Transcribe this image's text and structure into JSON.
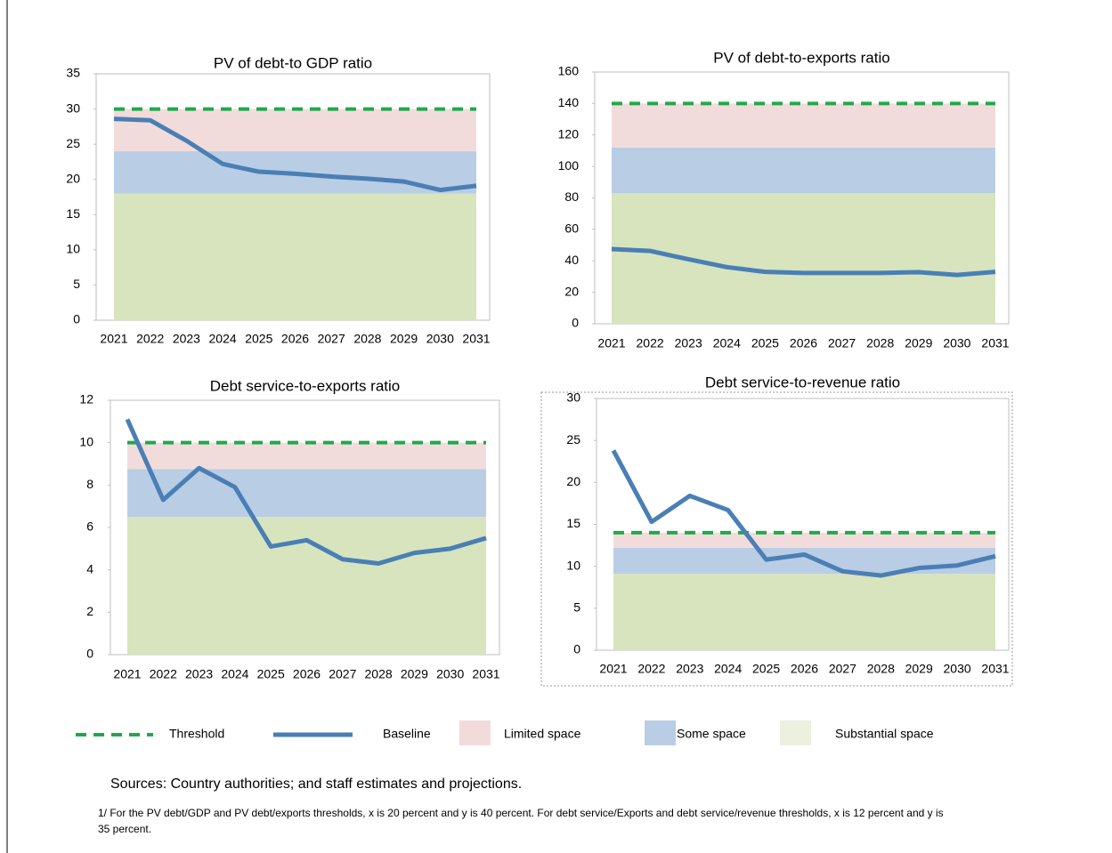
{
  "chart_data": [
    {
      "type": "line",
      "title": "PV of debt-to GDP ratio",
      "categories": [
        "2021",
        "2022",
        "2023",
        "2024",
        "2025",
        "2026",
        "2027",
        "2028",
        "2029",
        "2030",
        "2031"
      ],
      "baseline": [
        28.6,
        28.4,
        25.5,
        22.2,
        21.1,
        20.8,
        20.4,
        20.1,
        19.7,
        18.5,
        19.1
      ],
      "threshold": 30,
      "bands": [
        18,
        24,
        30
      ],
      "ylim": [
        0,
        35
      ],
      "yticks": [
        0,
        5,
        10,
        15,
        20,
        25,
        30,
        35
      ]
    },
    {
      "type": "line",
      "title": "PV of debt-to-exports ratio",
      "categories": [
        "2021",
        "2022",
        "2023",
        "2024",
        "2025",
        "2026",
        "2027",
        "2028",
        "2029",
        "2030",
        "2031"
      ],
      "baseline": [
        47.5,
        46.3,
        41,
        36,
        33,
        32.3,
        32.3,
        32.3,
        32.8,
        31,
        33
      ],
      "threshold": 140,
      "bands": [
        83,
        112,
        140
      ],
      "ylim": [
        0,
        160
      ],
      "yticks": [
        0,
        20,
        40,
        60,
        80,
        100,
        120,
        140,
        160
      ]
    },
    {
      "type": "line",
      "title": "Debt service-to-exports ratio",
      "categories": [
        "2021",
        "2022",
        "2023",
        "2024",
        "2025",
        "2026",
        "2027",
        "2028",
        "2029",
        "2030",
        "2031"
      ],
      "baseline": [
        11.1,
        7.3,
        8.8,
        7.9,
        5.1,
        5.4,
        4.5,
        4.3,
        4.8,
        5.0,
        5.5
      ],
      "threshold": 10,
      "bands": [
        6.5,
        8.75,
        10
      ],
      "ylim": [
        0,
        12
      ],
      "yticks": [
        0,
        2,
        4,
        6,
        8,
        10,
        12
      ]
    },
    {
      "type": "line",
      "title": "Debt service-to-revenue ratio",
      "categories": [
        "2021",
        "2022",
        "2023",
        "2024",
        "2025",
        "2026",
        "2027",
        "2028",
        "2029",
        "2030",
        "2031"
      ],
      "baseline": [
        23.8,
        15.3,
        18.4,
        16.7,
        10.8,
        11.4,
        9.4,
        8.9,
        9.8,
        10.1,
        11.2
      ],
      "threshold": 14,
      "bands": [
        9.1,
        12.2,
        14
      ],
      "ylim": [
        0,
        30
      ],
      "yticks": [
        0,
        5,
        10,
        15,
        20,
        25,
        30
      ]
    }
  ],
  "legend": [
    {
      "name": "Threshold",
      "color": "#22a84c"
    },
    {
      "name": "Baseline",
      "color": "#4a7fb5"
    },
    {
      "name": "Limited space",
      "color": "#f2dcdb"
    },
    {
      "name": "Some space",
      "color": "#b9cde5"
    },
    {
      "name": "Substantial space",
      "color": "#d7e4bd"
    }
  ],
  "sources": "Sources: Country authorities; and staff estimates and projections.",
  "note": "1/ For the PV debt/GDP and PV debt/exports thresholds, x is 20 percent and y is 40 percent. For debt service/Exports and debt service/revenue thresholds, x is 12 percent and y is 35 percent."
}
